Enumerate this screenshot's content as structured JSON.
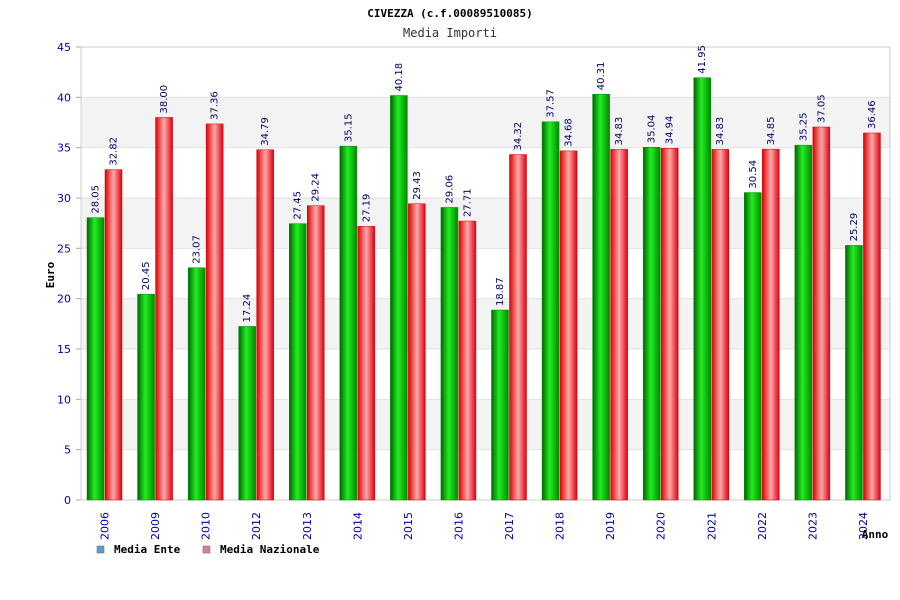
{
  "chart_data": {
    "type": "bar",
    "title": "CIVEZZA (c.f.00089510085)",
    "subtitle": "Media Importi",
    "xlabel": "Anno",
    "ylabel": "Euro",
    "ylim": [
      0,
      45
    ],
    "yticks": [
      0,
      5,
      10,
      15,
      20,
      25,
      30,
      35,
      40,
      45
    ],
    "grid": true,
    "legend_position": "bottom-left",
    "categories": [
      "2006",
      "2009",
      "2010",
      "2012",
      "2013",
      "2014",
      "2015",
      "2016",
      "2017",
      "2018",
      "2019",
      "2020",
      "2021",
      "2022",
      "2023",
      "2024"
    ],
    "series": [
      {
        "name": "Media Ente",
        "legend_color": "#5b9bd5",
        "color": "#00bb00",
        "values": [
          28.05,
          20.45,
          23.07,
          17.24,
          27.45,
          35.15,
          40.18,
          29.06,
          18.87,
          37.57,
          40.31,
          35.04,
          41.95,
          30.54,
          35.25,
          25.29
        ],
        "labels": [
          "28.05",
          "20.45",
          "23.07",
          "17.24",
          "27.45",
          "35.15",
          "40.18",
          "29.06",
          "18.87",
          "37.57",
          "40.31",
          "35.04",
          "41.95",
          "30.54",
          "35.25",
          "25.29"
        ]
      },
      {
        "name": "Media Nazionale",
        "legend_color": "#e07aa6",
        "color": "#ee2233",
        "values": [
          32.82,
          38.0,
          37.36,
          34.79,
          29.24,
          27.19,
          29.43,
          27.71,
          34.32,
          34.68,
          34.83,
          34.94,
          34.83,
          34.85,
          37.05,
          36.46
        ],
        "labels": [
          "32.82",
          "38.00",
          "37.36",
          "34.79",
          "29.24",
          "27.19",
          "29.43",
          "27.71",
          "34.32",
          "34.68",
          "34.83",
          "34.94",
          "34.83",
          "34.85",
          "37.05",
          "36.46"
        ]
      }
    ]
  }
}
